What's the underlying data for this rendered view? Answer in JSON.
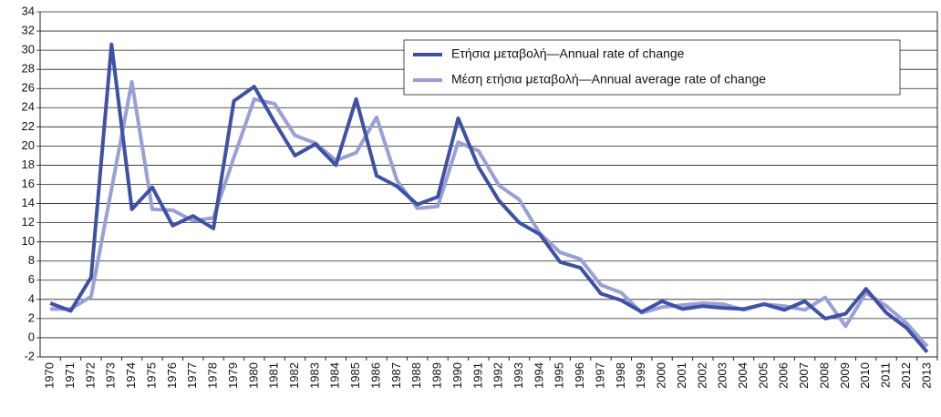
{
  "chart_data": {
    "type": "line",
    "categories": [
      "1970",
      "1971",
      "1972",
      "1973",
      "1974",
      "1975",
      "1976",
      "1977",
      "1978",
      "1979",
      "1980",
      "1981",
      "1982",
      "1983",
      "1984",
      "1985",
      "1986",
      "1987",
      "1988",
      "1989",
      "1990",
      "1991",
      "1992",
      "1993",
      "1994",
      "1995",
      "1996",
      "1997",
      "1998",
      "1999",
      "2000",
      "2001",
      "2002",
      "2003",
      "2004",
      "2005",
      "2006",
      "2007",
      "2008",
      "2009",
      "2010",
      "2011",
      "2012",
      "2013"
    ],
    "series": [
      {
        "name": "Ετήσια μεταβολή—Annual rate of change",
        "color": "#3f51a3",
        "values": [
          3.6,
          2.8,
          6.3,
          30.6,
          13.4,
          15.7,
          11.7,
          12.7,
          11.4,
          24.7,
          26.2,
          22.5,
          19.0,
          20.2,
          18.0,
          24.9,
          16.9,
          15.8,
          13.9,
          14.7,
          22.9,
          17.8,
          14.3,
          12.0,
          10.8,
          7.9,
          7.3,
          4.6,
          3.9,
          2.7,
          3.8,
          3.0,
          3.3,
          3.1,
          3.0,
          3.5,
          2.9,
          3.8,
          2.0,
          2.5,
          5.1,
          2.6,
          1.0,
          -1.5
        ]
      },
      {
        "name": "Μέση ετήσια μεταβολή—Annual average rate of change",
        "color": "#9a9fd6",
        "values": [
          3.0,
          3.0,
          4.3,
          15.5,
          26.7,
          13.4,
          13.3,
          12.2,
          12.5,
          18.8,
          24.9,
          24.4,
          21.1,
          20.3,
          18.5,
          19.3,
          23.0,
          16.4,
          13.5,
          13.7,
          20.4,
          19.5,
          15.9,
          14.4,
          10.9,
          8.9,
          8.2,
          5.5,
          4.7,
          2.6,
          3.2,
          3.4,
          3.6,
          3.5,
          2.9,
          3.5,
          3.3,
          2.9,
          4.2,
          1.2,
          4.7,
          3.3,
          1.5,
          -0.9
        ]
      }
    ],
    "ylim": [
      -2,
      34
    ],
    "yticks": [
      -2,
      0,
      2,
      4,
      6,
      8,
      10,
      12,
      14,
      16,
      18,
      20,
      22,
      24,
      26,
      28,
      30,
      32,
      34
    ],
    "grid": true,
    "legend": "upper right"
  }
}
